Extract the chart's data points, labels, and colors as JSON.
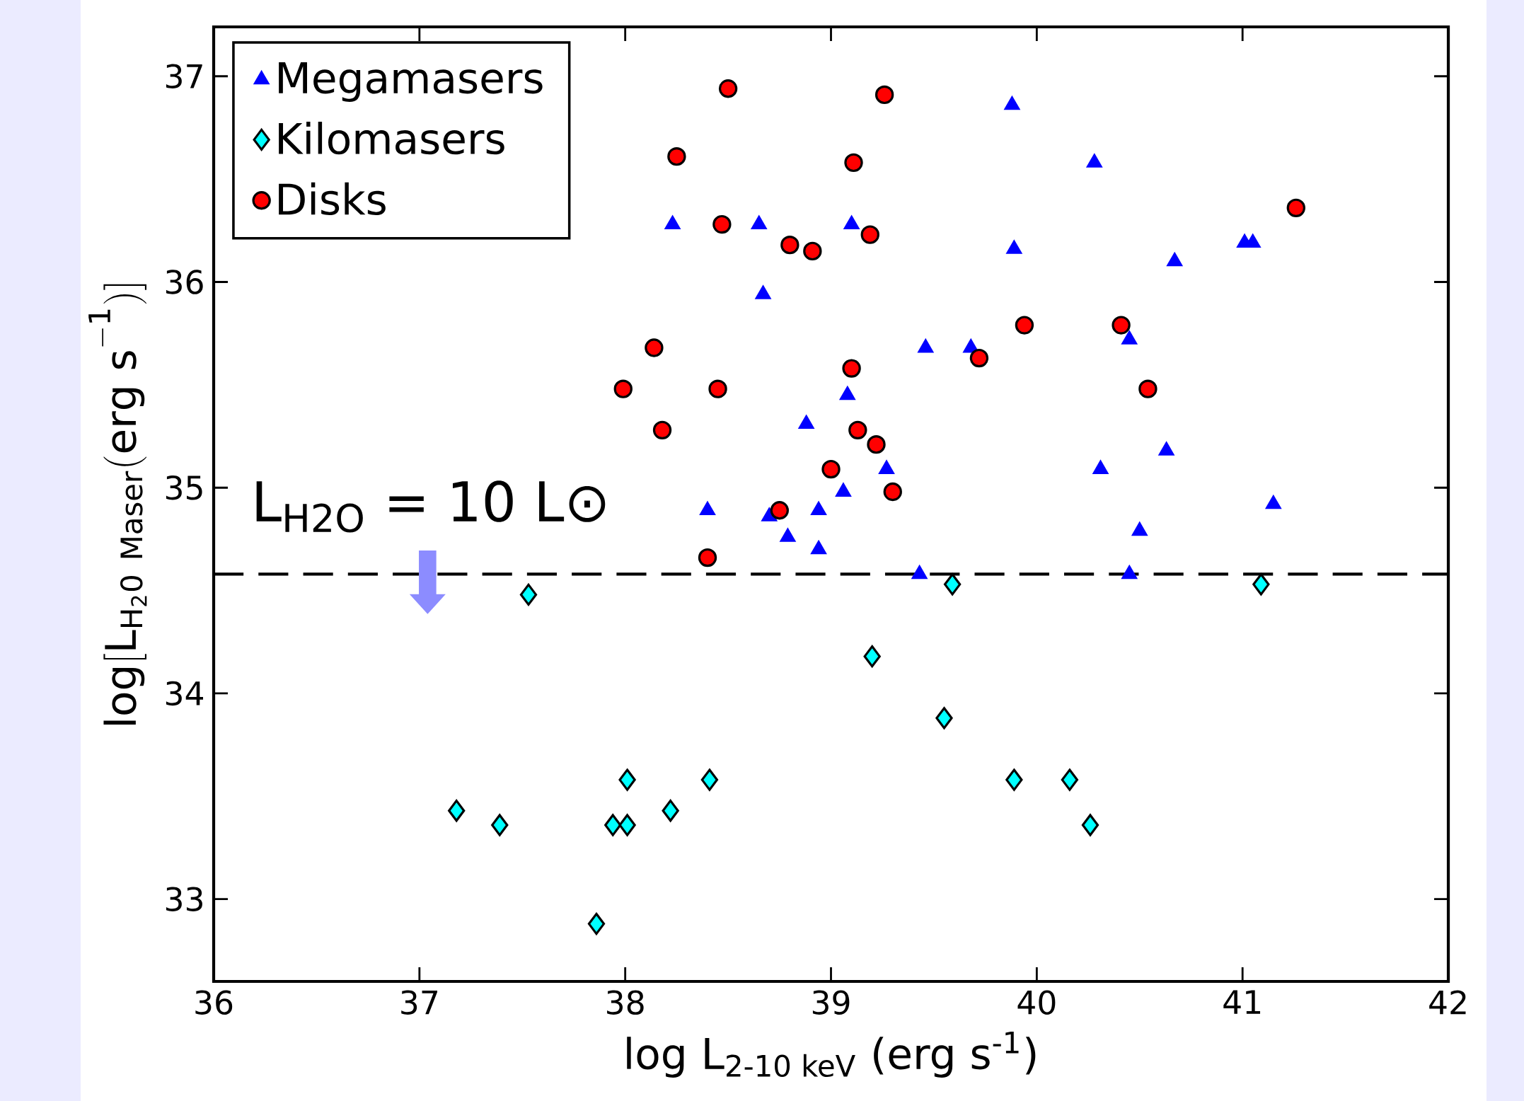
{
  "chart_data": {
    "type": "scatter",
    "xlabel": "log L$_{2-10 keV}$ (erg s$^{-1}$)",
    "ylabel": "\\mathrm{log[L_{H_{2}0\\ Maser}(erg\\ s^{-1})]}",
    "annotations": [
      "L$_{H2O}$ = 10 L⊙"
    ],
    "xlim": [
      36,
      42
    ],
    "ylim": [
      32.6,
      37.24
    ],
    "xticks": [
      36,
      37,
      38,
      39,
      40,
      41,
      42
    ],
    "yticks": [
      33,
      34,
      35,
      36,
      37
    ],
    "legend": "top left",
    "grid": false,
    "ref_lines": [
      {
        "axis": "y",
        "value": 34.58,
        "line_style": "dashed",
        "color": "#000000"
      }
    ],
    "series": [
      {
        "name": "Megamasers",
        "color": "#0000ff",
        "marker": "triangle",
        "x": [
          38.23,
          38.65,
          38.67,
          39.1,
          39.88,
          40.28,
          39.89,
          40.67,
          41.01,
          41.05,
          39.46,
          39.68,
          40.45,
          39.08,
          38.88,
          39.27,
          39.06,
          38.94,
          38.4,
          38.7,
          38.79,
          38.94,
          40.31,
          40.63,
          40.5,
          41.15,
          39.43,
          40.45
        ],
        "values": [
          36.28,
          36.28,
          35.94,
          36.28,
          36.86,
          36.58,
          36.16,
          36.1,
          36.19,
          36.19,
          35.68,
          35.68,
          35.72,
          35.45,
          35.31,
          35.09,
          34.98,
          34.89,
          34.89,
          34.86,
          34.76,
          34.7,
          35.09,
          35.18,
          34.79,
          34.92,
          34.58,
          34.58
        ]
      },
      {
        "name": "Kilomasers",
        "color": "#00ffff",
        "marker": "diamond",
        "x": [
          37.53,
          39.59,
          41.09,
          39.2,
          39.55,
          37.18,
          37.39,
          37.86,
          37.94,
          38.01,
          38.01,
          38.22,
          38.41,
          39.89,
          40.16,
          40.26
        ],
        "values": [
          34.48,
          34.53,
          34.53,
          34.18,
          33.88,
          33.43,
          33.36,
          32.88,
          33.36,
          33.58,
          33.36,
          33.43,
          33.58,
          33.58,
          33.58,
          33.36
        ]
      },
      {
        "name": "Disks",
        "color": "#ff0000",
        "marker": "circle",
        "x": [
          38.5,
          39.26,
          38.25,
          39.11,
          41.26,
          38.47,
          38.8,
          38.91,
          39.19,
          39.94,
          40.41,
          39.72,
          38.14,
          37.99,
          38.45,
          40.54,
          39.1,
          38.18,
          39.13,
          39.22,
          39.0,
          39.3,
          38.75,
          38.4
        ],
        "values": [
          36.94,
          36.91,
          36.61,
          36.58,
          36.36,
          36.28,
          36.18,
          36.15,
          36.23,
          35.79,
          35.79,
          35.63,
          35.68,
          35.48,
          35.48,
          35.48,
          35.58,
          35.28,
          35.28,
          35.21,
          35.09,
          34.98,
          34.89,
          34.66
        ]
      }
    ]
  }
}
